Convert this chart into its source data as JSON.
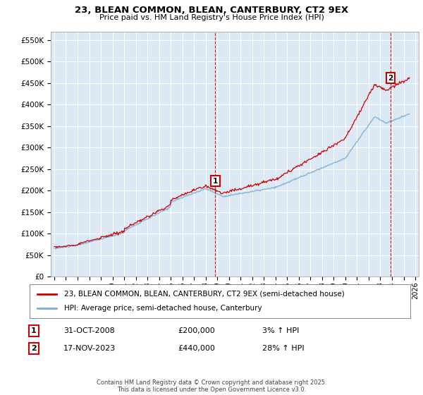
{
  "title": "23, BLEAN COMMON, BLEAN, CANTERBURY, CT2 9EX",
  "subtitle": "Price paid vs. HM Land Registry's House Price Index (HPI)",
  "ylabel_ticks": [
    "£0",
    "£50K",
    "£100K",
    "£150K",
    "£200K",
    "£250K",
    "£300K",
    "£350K",
    "£400K",
    "£450K",
    "£500K",
    "£550K"
  ],
  "ytick_values": [
    0,
    50000,
    100000,
    150000,
    200000,
    250000,
    300000,
    350000,
    400000,
    450000,
    500000,
    550000
  ],
  "ylim": [
    0,
    570000
  ],
  "xlim_start": 1994.7,
  "xlim_end": 2026.3,
  "xticks": [
    1995,
    1996,
    1997,
    1998,
    1999,
    2000,
    2001,
    2002,
    2003,
    2004,
    2005,
    2006,
    2007,
    2008,
    2009,
    2010,
    2011,
    2012,
    2013,
    2014,
    2015,
    2016,
    2017,
    2018,
    2019,
    2020,
    2021,
    2022,
    2023,
    2024,
    2025,
    2026
  ],
  "sale1_x": 2008.83,
  "sale1_y": 200000,
  "sale1_label": "1",
  "sale1_date": "31-OCT-2008",
  "sale1_price": "£200,000",
  "sale1_hpi": "3% ↑ HPI",
  "sale2_x": 2023.88,
  "sale2_y": 440000,
  "sale2_label": "2",
  "sale2_date": "17-NOV-2023",
  "sale2_price": "£440,000",
  "sale2_hpi": "28% ↑ HPI",
  "line1_color": "#cc0000",
  "line2_color": "#7aafd4",
  "line1_label": "23, BLEAN COMMON, BLEAN, CANTERBURY, CT2 9EX (semi-detached house)",
  "line2_label": "HPI: Average price, semi-detached house, Canterbury",
  "plot_bg_color": "#dce9f5",
  "footer": "Contains HM Land Registry data © Crown copyright and database right 2025.\nThis data is licensed under the Open Government Licence v3.0."
}
